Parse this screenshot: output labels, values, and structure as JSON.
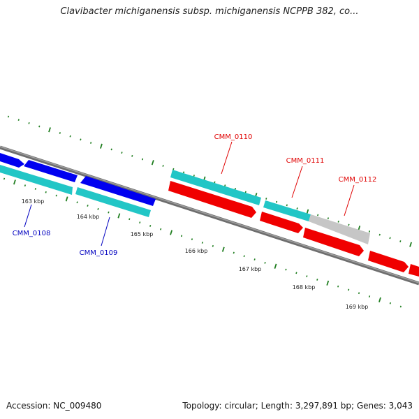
{
  "title": "Clavibacter michiganensis subsp. michiganensis NCPPB 382, co...",
  "footer": {
    "accession": "Accession: NC_009480",
    "summary": "Topology: circular; Length: 3,297,891 bp; Genes: 3,043"
  },
  "colors": {
    "backbone": "#808080",
    "tick": "#1e7d1e",
    "forward_cds": "#ff0000",
    "reverse_cds": "#0000ff",
    "cds_shadow": "#22cccc",
    "grey_feature": "#c8c8c8",
    "label_forward": "#e00000",
    "label_reverse": "#0000c0"
  },
  "scale_labels": [
    "163 kbp",
    "164 kbp",
    "165 kbp",
    "166 kbp",
    "167 kbp",
    "168 kbp",
    "169 kbp"
  ],
  "genes": [
    {
      "name": "CMM_0108",
      "strand": "reverse"
    },
    {
      "name": "CMM_0109",
      "strand": "reverse"
    },
    {
      "name": "CMM_0110",
      "strand": "forward"
    },
    {
      "name": "CMM_0111",
      "strand": "forward"
    },
    {
      "name": "CMM_0112",
      "strand": "forward"
    }
  ]
}
